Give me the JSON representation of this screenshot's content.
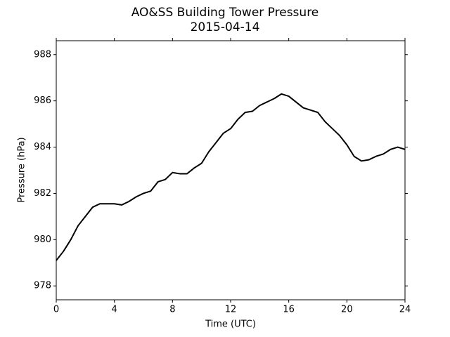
{
  "chart_data": {
    "type": "line",
    "title": "AO&SS Building Tower Pressure",
    "subtitle": "2015-04-14",
    "x_label": "Time (UTC)",
    "y_label": "Pressure (hPa)",
    "x": [
      0,
      0.5,
      1,
      1.5,
      2,
      2.5,
      3,
      3.5,
      4,
      4.5,
      5,
      5.5,
      6,
      6.5,
      7,
      7.5,
      8,
      8.5,
      9,
      9.5,
      10,
      10.5,
      11,
      11.5,
      12,
      12.5,
      13,
      13.5,
      14,
      14.5,
      15,
      15.5,
      16,
      16.5,
      17,
      17.5,
      18,
      18.5,
      19,
      19.5,
      20,
      20.5,
      21,
      21.5,
      22,
      22.5,
      23,
      23.5,
      24
    ],
    "series": [
      {
        "name": "Pressure",
        "color": "#000000",
        "values": [
          979.1,
          979.5,
          980.0,
          980.6,
          981.0,
          981.4,
          981.55,
          981.55,
          981.55,
          981.5,
          981.65,
          981.85,
          982.0,
          982.1,
          982.5,
          982.6,
          982.9,
          982.85,
          982.85,
          983.1,
          983.3,
          983.8,
          984.2,
          984.6,
          984.8,
          985.2,
          985.5,
          985.55,
          985.8,
          985.95,
          986.1,
          986.3,
          986.2,
          985.95,
          985.7,
          985.6,
          985.5,
          985.1,
          984.8,
          984.5,
          984.1,
          983.6,
          983.4,
          983.45,
          983.6,
          983.7,
          983.9,
          984.0,
          983.9
        ]
      }
    ],
    "xlim": [
      0,
      24
    ],
    "xticks": [
      0,
      4,
      8,
      12,
      16,
      20,
      24
    ],
    "ylim": [
      977.4,
      988.6
    ],
    "yticks": [
      978,
      980,
      982,
      984,
      986,
      988
    ],
    "grid": false
  }
}
